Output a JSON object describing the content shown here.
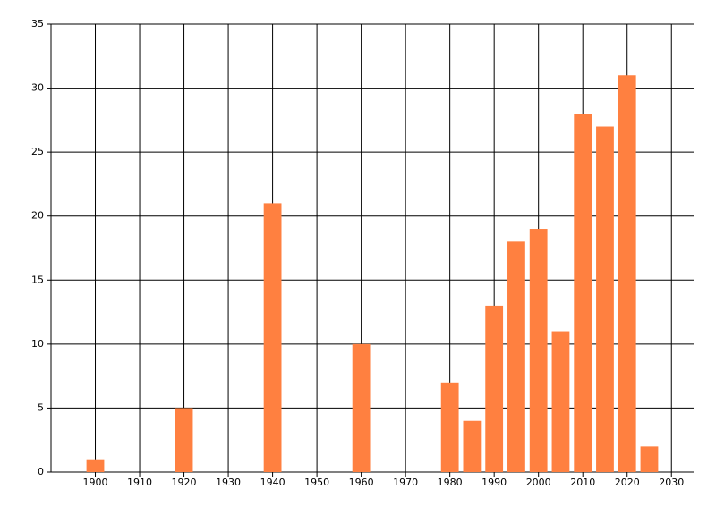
{
  "chart_data": {
    "type": "bar",
    "x": [
      1900,
      1920,
      1940,
      1960,
      1980,
      1985,
      1990,
      1995,
      2000,
      2005,
      2010,
      2015,
      2020,
      2025
    ],
    "values": [
      1,
      5,
      21,
      10,
      7,
      4,
      13,
      18,
      19,
      11,
      28,
      27,
      31,
      2
    ],
    "color": "#ff8040",
    "xlim": [
      1890,
      2035
    ],
    "xticks": [
      1900,
      1910,
      1920,
      1930,
      1940,
      1950,
      1960,
      1970,
      1980,
      1990,
      2000,
      2010,
      2020,
      2030
    ],
    "ylim": [
      0,
      35
    ],
    "yticks": [
      0,
      5,
      10,
      15,
      20,
      25,
      30,
      35
    ],
    "grid": true
  }
}
